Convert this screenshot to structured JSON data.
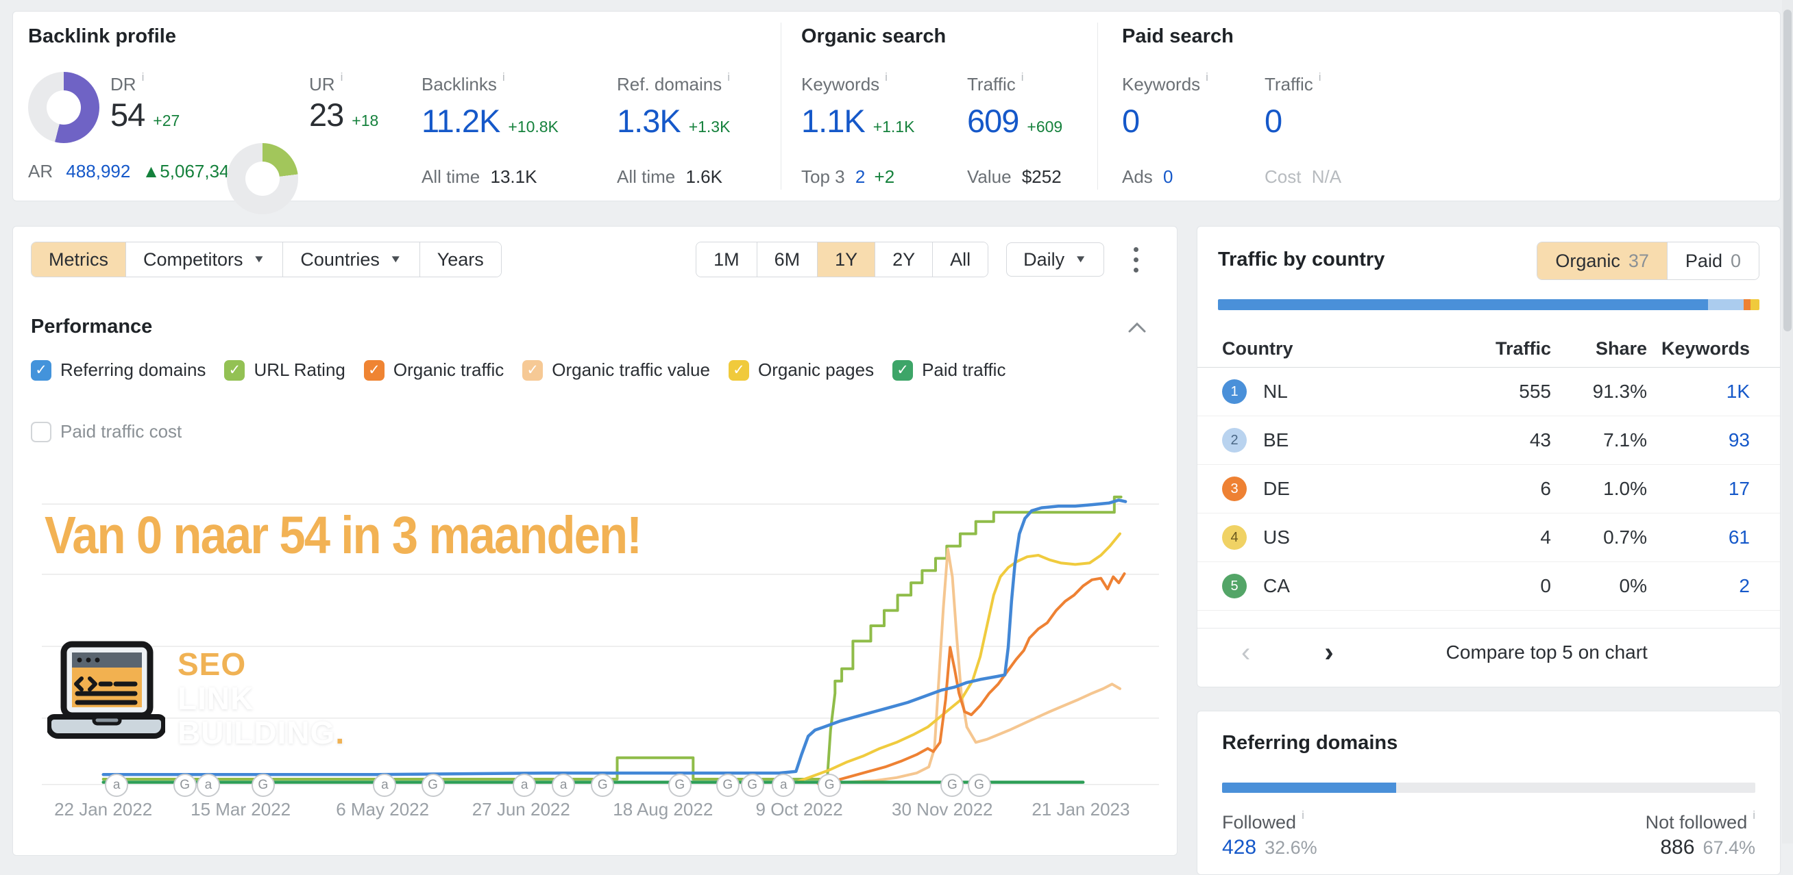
{
  "overview": {
    "backlink_profile": {
      "title": "Backlink profile",
      "dr": {
        "label": "DR",
        "value": "54",
        "delta": "+27",
        "percent": 54,
        "color": "#6f63c5"
      },
      "ur": {
        "label": "UR",
        "value": "23",
        "delta": "+18",
        "percent": 23,
        "color": "#a2c65b"
      },
      "ar": {
        "label": "AR",
        "value": "488,992",
        "delta": "▲5,067,346"
      },
      "backlinks": {
        "label": "Backlinks",
        "value": "11.2K",
        "delta": "+10.8K",
        "sub_label": "All time",
        "sub_value": "13.1K"
      },
      "ref_domains": {
        "label": "Ref. domains",
        "value": "1.3K",
        "delta": "+1.3K",
        "sub_label": "All time",
        "sub_value": "1.6K"
      }
    },
    "organic_search": {
      "title": "Organic search",
      "keywords": {
        "label": "Keywords",
        "value": "1.1K",
        "delta": "+1.1K",
        "sub_label": "Top 3",
        "sub_value": "2",
        "sub_delta": "+2"
      },
      "traffic": {
        "label": "Traffic",
        "value": "609",
        "delta": "+609",
        "sub_label": "Value",
        "sub_value": "$252"
      }
    },
    "paid_search": {
      "title": "Paid search",
      "keywords": {
        "label": "Keywords",
        "value": "0",
        "sub_label": "Ads",
        "sub_value": "0"
      },
      "traffic": {
        "label": "Traffic",
        "value": "0",
        "sub_label": "Cost",
        "sub_value": "N/A"
      }
    }
  },
  "toolbar": {
    "metrics": "Metrics",
    "competitors": "Competitors",
    "countries": "Countries",
    "years": "Years",
    "ranges": [
      "1M",
      "6M",
      "1Y",
      "2Y",
      "All"
    ],
    "active_range": "1Y",
    "granularity": "Daily"
  },
  "performance": {
    "title": "Performance",
    "legend": [
      {
        "label": "Referring domains",
        "color": "#4393db",
        "checked": true
      },
      {
        "label": "URL Rating",
        "color": "#93c154",
        "checked": true
      },
      {
        "label": "Organic traffic",
        "color": "#ef8433",
        "checked": true
      },
      {
        "label": "Organic traffic value",
        "color": "#f6c995",
        "checked": true
      },
      {
        "label": "Organic pages",
        "color": "#f0ca3c",
        "checked": true
      },
      {
        "label": "Paid traffic",
        "color": "#3da568",
        "checked": true
      }
    ],
    "unchecked_label": "Paid traffic cost"
  },
  "chart_data": {
    "type": "line",
    "title_overlay": "Van 0 naar 54 in 3 maanden!",
    "watermark": {
      "line1": "SEO",
      "line2": "LINK",
      "line3": "BUILDING",
      "dot": "."
    },
    "x_range": [
      "22 Jan 2022",
      "21 Jan 2023"
    ],
    "y_axis": "relative % of plot height (no axis labels visible)",
    "gridlines_pct": [
      0.3,
      21.9,
      45.3,
      68.8,
      91.7
    ],
    "x_labels": [
      {
        "t": "22 Jan 2022",
        "p": 5.5
      },
      {
        "t": "15 Mar 2022",
        "p": 17.8
      },
      {
        "t": "6 May 2022",
        "p": 30.5
      },
      {
        "t": "27 Jun 2022",
        "p": 42.9
      },
      {
        "t": "18 Aug 2022",
        "p": 55.6
      },
      {
        "t": "9 Oct 2022",
        "p": 67.8
      },
      {
        "t": "30 Nov 2022",
        "p": 80.6
      },
      {
        "t": "21 Jan 2023",
        "p": 93.0
      }
    ],
    "markers": [
      {
        "p": 6.7,
        "l": "a"
      },
      {
        "p": 12.8,
        "l": "G"
      },
      {
        "p": 14.9,
        "l": "a"
      },
      {
        "p": 19.8,
        "l": "G"
      },
      {
        "p": 30.7,
        "l": "a"
      },
      {
        "p": 35.0,
        "l": "G"
      },
      {
        "p": 43.2,
        "l": "a"
      },
      {
        "p": 46.7,
        "l": "a"
      },
      {
        "p": 50.2,
        "l": "G"
      },
      {
        "p": 57.1,
        "l": "G"
      },
      {
        "p": 61.4,
        "l": "G"
      },
      {
        "p": 63.6,
        "l": "G"
      },
      {
        "p": 66.4,
        "l": "a"
      },
      {
        "p": 70.5,
        "l": "G"
      },
      {
        "p": 81.5,
        "l": "G"
      },
      {
        "p": 83.9,
        "l": "G"
      }
    ],
    "series": [
      {
        "name": "URL Rating",
        "color": "#8fbc49",
        "width": 4,
        "points": [
          [
            5.5,
            2
          ],
          [
            51.5,
            2
          ],
          [
            51.5,
            9
          ],
          [
            58.3,
            9
          ],
          [
            58.3,
            2
          ],
          [
            70.3,
            2
          ],
          [
            70.6,
            18
          ],
          [
            71,
            30
          ],
          [
            71,
            34
          ],
          [
            71.6,
            34
          ],
          [
            71.6,
            38
          ],
          [
            72.6,
            38
          ],
          [
            72.6,
            47
          ],
          [
            74.2,
            47
          ],
          [
            74.2,
            52
          ],
          [
            75.4,
            52
          ],
          [
            75.4,
            57
          ],
          [
            76.6,
            57
          ],
          [
            76.6,
            62
          ],
          [
            77.8,
            62
          ],
          [
            77.8,
            66
          ],
          [
            78.8,
            66
          ],
          [
            78.8,
            70
          ],
          [
            80,
            70
          ],
          [
            80,
            74
          ],
          [
            81,
            74
          ],
          [
            81,
            78
          ],
          [
            82.2,
            78
          ],
          [
            82.2,
            82
          ],
          [
            83.6,
            82
          ],
          [
            83.6,
            86
          ],
          [
            85.2,
            86
          ],
          [
            85.2,
            89
          ],
          [
            96,
            89
          ],
          [
            96,
            94
          ],
          [
            96.6,
            94
          ]
        ]
      },
      {
        "name": "Organic traffic value",
        "color": "#f5c690",
        "width": 4,
        "points": [
          [
            69.5,
            0.5
          ],
          [
            72,
            1
          ],
          [
            74.5,
            1.5
          ],
          [
            76.5,
            2.5
          ],
          [
            78.3,
            4
          ],
          [
            79.4,
            6
          ],
          [
            79.9,
            12
          ],
          [
            80.3,
            35
          ],
          [
            80.7,
            58
          ],
          [
            81.1,
            77
          ],
          [
            81.5,
            68
          ],
          [
            81.9,
            48
          ],
          [
            82.3,
            30
          ],
          [
            82.8,
            19
          ],
          [
            83.6,
            14
          ],
          [
            84.6,
            15
          ],
          [
            85.6,
            16.5
          ],
          [
            86.6,
            18
          ],
          [
            87.8,
            20
          ],
          [
            89,
            22
          ],
          [
            90.2,
            24
          ],
          [
            91.5,
            26
          ],
          [
            92.8,
            28
          ],
          [
            94,
            30
          ],
          [
            95,
            31.5
          ],
          [
            95.8,
            33
          ],
          [
            96.5,
            31.5
          ]
        ]
      },
      {
        "name": "Organic pages",
        "color": "#f0cb3e",
        "width": 4,
        "points": [
          [
            67.5,
            1
          ],
          [
            69,
            3
          ],
          [
            70.5,
            5
          ],
          [
            72,
            7.5
          ],
          [
            73.5,
            9.5
          ],
          [
            75,
            12
          ],
          [
            76.5,
            14
          ],
          [
            78,
            16.5
          ],
          [
            79.3,
            19
          ],
          [
            80.3,
            22
          ],
          [
            81.3,
            25
          ],
          [
            82.3,
            28
          ],
          [
            83.3,
            34
          ],
          [
            84,
            42
          ],
          [
            84.6,
            52
          ],
          [
            85.2,
            62
          ],
          [
            85.8,
            68
          ],
          [
            86.5,
            71
          ],
          [
            87.3,
            73
          ],
          [
            88.2,
            74.5
          ],
          [
            89.2,
            75
          ],
          [
            90.2,
            73.5
          ],
          [
            91.2,
            72.5
          ],
          [
            92.5,
            72
          ],
          [
            93.8,
            72.5
          ],
          [
            94.8,
            75
          ],
          [
            95.6,
            78
          ],
          [
            96.5,
            82
          ]
        ]
      },
      {
        "name": "Organic traffic",
        "color": "#ee8133",
        "width": 4,
        "points": [
          [
            69.5,
            0.5
          ],
          [
            71,
            1.5
          ],
          [
            72.5,
            3
          ],
          [
            74,
            4.5
          ],
          [
            75.5,
            6
          ],
          [
            77,
            8
          ],
          [
            78.3,
            10
          ],
          [
            79.3,
            12
          ],
          [
            79.8,
            11
          ],
          [
            80.4,
            14
          ],
          [
            80.9,
            28
          ],
          [
            81.3,
            45
          ],
          [
            81.7,
            38
          ],
          [
            82.1,
            30
          ],
          [
            82.6,
            24
          ],
          [
            83.2,
            23
          ],
          [
            84,
            26
          ],
          [
            84.8,
            30
          ],
          [
            85.6,
            33
          ],
          [
            86.4,
            37
          ],
          [
            87.2,
            41
          ],
          [
            87.9,
            44
          ],
          [
            88.4,
            48
          ],
          [
            89.2,
            51
          ],
          [
            90,
            53
          ],
          [
            90.8,
            57
          ],
          [
            91.6,
            60
          ],
          [
            92.4,
            62
          ],
          [
            93.2,
            65
          ],
          [
            94,
            67
          ],
          [
            94.8,
            67.5
          ],
          [
            95.4,
            64
          ],
          [
            95.9,
            68
          ],
          [
            96.4,
            66
          ],
          [
            96.9,
            69
          ]
        ]
      },
      {
        "name": "Referring domains",
        "color": "#4287d6",
        "width": 4.5,
        "points": [
          [
            5.5,
            3.5
          ],
          [
            30,
            3.5
          ],
          [
            45,
            4
          ],
          [
            60,
            4
          ],
          [
            66,
            4
          ],
          [
            67.5,
            4.5
          ],
          [
            68,
            10
          ],
          [
            68.6,
            16
          ],
          [
            69.2,
            18
          ],
          [
            70,
            19
          ],
          [
            71.5,
            21
          ],
          [
            73,
            22.5
          ],
          [
            74.5,
            24
          ],
          [
            76,
            25.5
          ],
          [
            77.5,
            27
          ],
          [
            79,
            29
          ],
          [
            80.5,
            31
          ],
          [
            81.7,
            32
          ],
          [
            82.8,
            33.5
          ],
          [
            84,
            34.5
          ],
          [
            85.5,
            35.5
          ],
          [
            86.2,
            36
          ],
          [
            86.5,
            45
          ],
          [
            86.8,
            60
          ],
          [
            87.1,
            72
          ],
          [
            87.5,
            82
          ],
          [
            88,
            87
          ],
          [
            88.6,
            89.5
          ],
          [
            89.5,
            90.5
          ],
          [
            91,
            91
          ],
          [
            92.5,
            91
          ],
          [
            94,
            91.5
          ],
          [
            95.5,
            92
          ],
          [
            96.4,
            93
          ],
          [
            97,
            92.5
          ]
        ]
      },
      {
        "name": "Paid traffic",
        "color": "#2d9e56",
        "width": 4.5,
        "points": [
          [
            5.5,
            1
          ],
          [
            93.2,
            1
          ]
        ]
      }
    ]
  },
  "traffic_by_country": {
    "title": "Traffic by country",
    "toggle": {
      "organic_label": "Organic",
      "organic_count": "37",
      "paid_label": "Paid",
      "paid_count": "0"
    },
    "bar": [
      {
        "color": "#4a90d9",
        "width": "90.5%"
      },
      {
        "color": "#abccee",
        "width": "6.6%"
      },
      {
        "color": "#ee8133",
        "width": "1.2%"
      },
      {
        "color": "#f0ca3c",
        "width": "1.7%"
      }
    ],
    "headers": {
      "country": "Country",
      "traffic": "Traffic",
      "share": "Share",
      "keywords": "Keywords"
    },
    "rows": [
      {
        "rank": "1",
        "badge": "#4a90d9",
        "badge_text": "#ffffff",
        "country": "NL",
        "traffic": "555",
        "share": "91.3%",
        "keywords": "1K"
      },
      {
        "rank": "2",
        "badge": "#b9d3ef",
        "badge_text": "#4a6785",
        "country": "BE",
        "traffic": "43",
        "share": "7.1%",
        "keywords": "93"
      },
      {
        "rank": "3",
        "badge": "#ee8133",
        "badge_text": "#ffffff",
        "country": "DE",
        "traffic": "6",
        "share": "1.0%",
        "keywords": "17"
      },
      {
        "rank": "4",
        "badge": "#f0d264",
        "badge_text": "#6b5a1e",
        "country": "US",
        "traffic": "4",
        "share": "0.7%",
        "keywords": "61"
      },
      {
        "rank": "5",
        "badge": "#53a567",
        "badge_text": "#ffffff",
        "country": "CA",
        "traffic": "0",
        "share": "0%",
        "keywords": "2"
      }
    ],
    "footer": {
      "prev": "‹",
      "next": "›",
      "compare_label": "Compare top 5 on chart"
    }
  },
  "referring_domains_panel": {
    "title": "Referring domains",
    "bar": {
      "color": "#4a90d9",
      "width": "32.6%"
    },
    "followed": {
      "label": "Followed",
      "value": "428",
      "percent": "32.6%"
    },
    "not_followed": {
      "label": "Not followed",
      "value": "886",
      "percent": "67.4%"
    }
  }
}
